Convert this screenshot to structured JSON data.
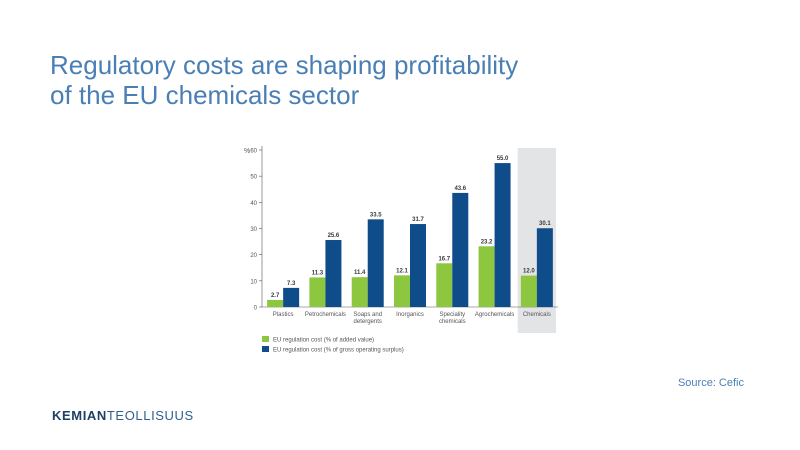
{
  "slide": {
    "title_line1": "Regulatory costs are shaping profitability",
    "title_line2": "of the EU chemicals sector",
    "source": "Source: Cefic",
    "logo_bold": "KEMIAN",
    "logo_light": "TEOLLISUUS"
  },
  "colors": {
    "title": "#4a7fb5",
    "series1": "#8dc63f",
    "series2": "#0f4c8a",
    "highlight": "#e3e4e6",
    "axis": "#555555"
  },
  "chart_data": {
    "type": "bar",
    "ylabel": "%",
    "ylim": [
      0,
      60
    ],
    "yticks": [
      0,
      10,
      20,
      30,
      40,
      50,
      60
    ],
    "categories": [
      [
        "Plastics"
      ],
      [
        "Petrochemicals"
      ],
      [
        "Soaps and",
        "detergents"
      ],
      [
        "Inorganics"
      ],
      [
        "Speciality",
        "chemicals"
      ],
      [
        "Agrochemicals"
      ],
      [
        "Chemicals"
      ]
    ],
    "highlighted_category": 6,
    "series": [
      {
        "name": "EU regulation cost (% of added value)",
        "values": [
          2.7,
          11.3,
          11.4,
          12.1,
          16.7,
          23.2,
          12.0
        ],
        "labels": [
          "2.7",
          "11.3",
          "11.4",
          "12.1",
          "16.7",
          "23.2",
          "12.0"
        ]
      },
      {
        "name": "EU regulation cost (% of gross operating surplus)",
        "values": [
          7.3,
          25.6,
          33.5,
          31.7,
          43.6,
          55.0,
          30.1
        ],
        "labels": [
          "7.3",
          "25.6",
          "33.5",
          "31.7",
          "43.6",
          "55.0",
          "30.1"
        ]
      }
    ],
    "legend_position": "bottom-left",
    "grid": false
  }
}
